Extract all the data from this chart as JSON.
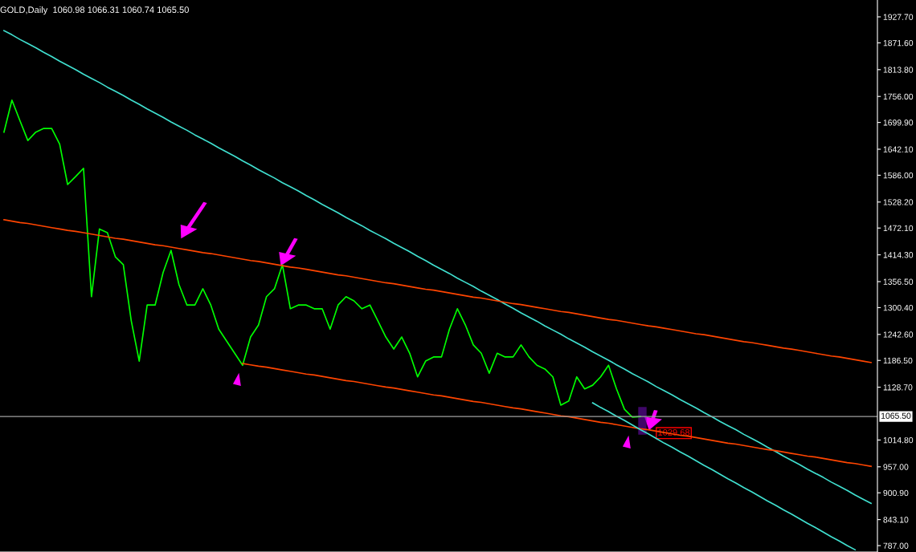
{
  "chart_data": {
    "type": "line",
    "title": "GOLD,Daily  1060.98 1066.31 1060.74 1065.50",
    "categories": [
      null,
      null,
      null,
      null,
      null,
      null,
      null,
      null,
      null,
      null,
      null,
      null,
      null,
      null,
      null,
      null,
      null,
      null,
      null,
      null,
      null,
      null,
      null,
      null,
      null,
      null,
      null,
      null,
      null,
      null,
      null,
      null,
      null,
      null,
      null,
      null,
      null,
      null,
      null,
      null,
      null,
      null,
      null,
      null,
      null,
      null,
      null,
      null,
      null,
      null,
      null,
      null,
      null,
      null,
      null,
      null,
      null,
      null,
      null,
      null,
      null,
      null,
      null,
      null,
      null,
      null,
      null,
      null,
      null,
      null,
      null,
      null,
      null,
      null,
      null,
      null,
      null,
      null,
      null,
      null,
      null,
      null,
      null,
      null,
      null,
      null,
      null,
      null,
      null,
      null,
      null,
      null,
      null,
      null,
      null,
      null,
      null,
      null,
      null,
      null,
      null,
      null,
      null,
      null,
      null,
      null,
      null,
      null,
      null,
      null
    ],
    "ylim": [
      773.2,
      1964.05
    ],
    "yticks": [
      {
        "value": 787.0,
        "label": "787.00"
      },
      {
        "value": 843.1,
        "label": "843.10"
      },
      {
        "value": 900.9,
        "label": "900.90"
      },
      {
        "value": 957.0,
        "label": "957.00"
      },
      {
        "value": 1014.8,
        "label": "1014.80"
      },
      {
        "value": 1128.7,
        "label": "1128.70"
      },
      {
        "value": 1186.5,
        "label": "1186.50"
      },
      {
        "value": 1242.6,
        "label": "1242.60"
      },
      {
        "value": 1300.4,
        "label": "1300.40"
      },
      {
        "value": 1356.5,
        "label": "1356.50"
      },
      {
        "value": 1414.3,
        "label": "1414.30"
      },
      {
        "value": 1472.1,
        "label": "1472.10"
      },
      {
        "value": 1528.2,
        "label": "1528.20"
      },
      {
        "value": 1586.0,
        "label": "1586.00"
      },
      {
        "value": 1642.1,
        "label": "1642.10"
      },
      {
        "value": 1699.9,
        "label": "1699.90"
      },
      {
        "value": 1756.0,
        "label": "1756.00"
      },
      {
        "value": 1813.8,
        "label": "1813.80"
      },
      {
        "value": 1871.6,
        "label": "1871.60"
      },
      {
        "value": 1927.7,
        "label": "1927.70"
      }
    ],
    "tick_labels": "y",
    "grid": false,
    "legend": false,
    "series": [
      {
        "color": "#00ff00",
        "values": [
          1679,
          1748,
          1704,
          1661,
          1679,
          1687,
          1687,
          1653,
          1566,
          1583,
          1601,
          1324,
          1470,
          1462,
          1410,
          1393,
          1272,
          1185,
          1306,
          1306,
          1376,
          1424,
          1350,
          1306,
          1306,
          1341,
          1306,
          1254,
          1228,
          1202,
          1176,
          1237,
          1263,
          1324,
          1341,
          1393,
          1298,
          1306,
          1306,
          1298,
          1298,
          1254,
          1306,
          1324,
          1315,
          1298,
          1306,
          1272,
          1237,
          1211,
          1237,
          1202,
          1151,
          1185,
          1194,
          1194,
          1254,
          1298,
          1263,
          1220,
          1202,
          1159,
          1202,
          1194,
          1194,
          1220,
          1194,
          1176,
          1168,
          1151,
          1090,
          1099,
          1151,
          1125,
          1133,
          1151,
          1176,
          1125,
          1081,
          1064,
          1065.5,
          null,
          null,
          null,
          null,
          null,
          null,
          null,
          null,
          null,
          null,
          null,
          null,
          null,
          null,
          null,
          null,
          null,
          null,
          null,
          null,
          null,
          null,
          null,
          null,
          null,
          null,
          null,
          null,
          null
        ]
      },
      {
        "color": "#40e0d0",
        "values": [
          1898,
          1889,
          1879,
          1870,
          1861,
          1851,
          1842,
          1832,
          1823,
          1814,
          1804,
          1795,
          1786,
          1776,
          1767,
          1758,
          1748,
          1739,
          1729,
          1720,
          1711,
          1701,
          1692,
          1683,
          1673,
          1664,
          1655,
          1645,
          1636,
          1627,
          1617,
          1608,
          1598,
          1589,
          1580,
          1570,
          1561,
          1552,
          1542,
          1533,
          1523,
          1514,
          1505,
          1495,
          1486,
          1477,
          1467,
          1458,
          1449,
          1439,
          1430,
          1421,
          1411,
          1402,
          1392,
          1383,
          1374,
          1364,
          1355,
          1346,
          1336,
          1327,
          1318,
          1308,
          1299,
          1289,
          1280,
          1271,
          1261,
          1252,
          1243,
          1233,
          1224,
          1215,
          1205,
          1196,
          1187,
          1177,
          1168,
          1158,
          1149,
          1140,
          1130,
          1121,
          1112,
          1102,
          1093,
          1084,
          1074,
          1065,
          1055,
          1046,
          1037,
          1027,
          1018,
          1009,
          999,
          990,
          980,
          971,
          962,
          952,
          943,
          934,
          924,
          915,
          906,
          896,
          887,
          878
        ]
      },
      {
        "color": "#ff4500",
        "values": [
          1490,
          1487,
          1484,
          1482,
          1479,
          1476,
          1473,
          1470,
          1467,
          1465,
          1462,
          1459,
          1456,
          1453,
          1450,
          1448,
          1445,
          1442,
          1439,
          1436,
          1434,
          1431,
          1428,
          1425,
          1422,
          1419,
          1417,
          1414,
          1411,
          1408,
          1405,
          1402,
          1400,
          1397,
          1394,
          1391,
          1388,
          1386,
          1383,
          1380,
          1377,
          1374,
          1371,
          1369,
          1366,
          1363,
          1360,
          1357,
          1354,
          1352,
          1349,
          1346,
          1343,
          1340,
          1338,
          1335,
          1332,
          1329,
          1326,
          1323,
          1321,
          1318,
          1315,
          1312,
          1309,
          1307,
          1304,
          1301,
          1298,
          1295,
          1292,
          1290,
          1287,
          1284,
          1281,
          1278,
          1275,
          1273,
          1270,
          1267,
          1264,
          1261,
          1259,
          1256,
          1253,
          1250,
          1247,
          1244,
          1242,
          1239,
          1236,
          1233,
          1230,
          1227,
          1225,
          1222,
          1219,
          1216,
          1213,
          1211,
          1208,
          1205,
          1202,
          1199,
          1196,
          1194,
          1191,
          1188,
          1185,
          1182
        ]
      },
      {
        "color": "#ff4500",
        "values": [
          null,
          null,
          null,
          null,
          null,
          null,
          null,
          null,
          null,
          null,
          null,
          null,
          null,
          null,
          null,
          null,
          null,
          null,
          null,
          null,
          null,
          null,
          null,
          null,
          null,
          null,
          null,
          null,
          null,
          null,
          1180,
          1177,
          1174,
          1172,
          1169,
          1166,
          1163,
          1160,
          1157,
          1155,
          1152,
          1149,
          1146,
          1143,
          1141,
          1138,
          1135,
          1132,
          1129,
          1127,
          1124,
          1121,
          1118,
          1115,
          1112,
          1110,
          1107,
          1104,
          1101,
          1098,
          1096,
          1093,
          1090,
          1087,
          1084,
          1082,
          1079,
          1076,
          1073,
          1070,
          1067,
          1065,
          1062,
          1059,
          1056,
          1053,
          1051,
          1048,
          1045,
          1042,
          1039,
          1037,
          1034,
          1031,
          1028,
          1025,
          1023,
          1020,
          1017,
          1014,
          1011,
          1008,
          1006,
          1003,
          1000,
          997,
          994,
          992,
          989,
          986,
          983,
          980,
          978,
          975,
          972,
          969,
          966,
          964,
          961,
          958
        ]
      },
      {
        "color": "#40e0d0",
        "values": [
          null,
          null,
          null,
          null,
          null,
          null,
          null,
          null,
          null,
          null,
          null,
          null,
          null,
          null,
          null,
          null,
          null,
          null,
          null,
          null,
          null,
          null,
          null,
          null,
          null,
          null,
          null,
          null,
          null,
          null,
          null,
          null,
          null,
          null,
          null,
          null,
          null,
          null,
          null,
          null,
          null,
          null,
          null,
          null,
          null,
          null,
          null,
          null,
          null,
          null,
          null,
          null,
          null,
          null,
          null,
          null,
          null,
          null,
          null,
          null,
          null,
          null,
          null,
          null,
          null,
          null,
          null,
          null,
          null,
          null,
          null,
          null,
          null,
          null,
          1095,
          1085,
          1076,
          1066,
          1057,
          1047,
          1037,
          1028,
          1018,
          1008,
          999,
          989,
          980,
          970,
          960,
          951,
          941,
          931,
          922,
          912,
          903,
          893,
          883,
          874,
          864,
          855,
          845,
          835,
          826,
          816,
          806,
          797,
          787,
          778,
          null,
          null
        ]
      }
    ],
    "ref_lines": [
      {
        "axis": "y",
        "value": 1065.5,
        "label": "1065.50",
        "color": "#a0a0a0"
      }
    ],
    "annotations": [
      {
        "text": "1029.68",
        "y": 1029.68
      }
    ]
  }
}
